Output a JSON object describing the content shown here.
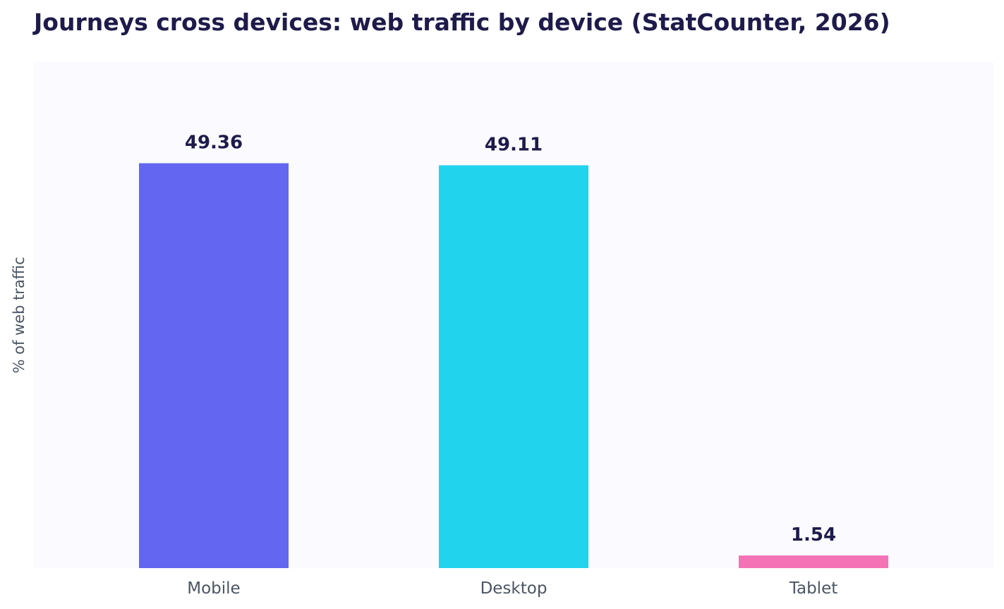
{
  "chart_data": {
    "type": "bar",
    "title": "Journeys cross devices: web traffic by device (StatCounter, 2026)",
    "xlabel": "",
    "ylabel": "% of web traffic",
    "categories": [
      "Mobile",
      "Desktop",
      "Tablet"
    ],
    "values": [
      49.36,
      49.11,
      1.54
    ],
    "value_labels": [
      "49.36",
      "49.11",
      "1.54"
    ],
    "colors": [
      "#6366f1",
      "#22d3ee",
      "#f472b6"
    ],
    "ylim": [
      0,
      61.7
    ],
    "grid": false,
    "legend": "none",
    "plot_background": "#fafaff"
  }
}
